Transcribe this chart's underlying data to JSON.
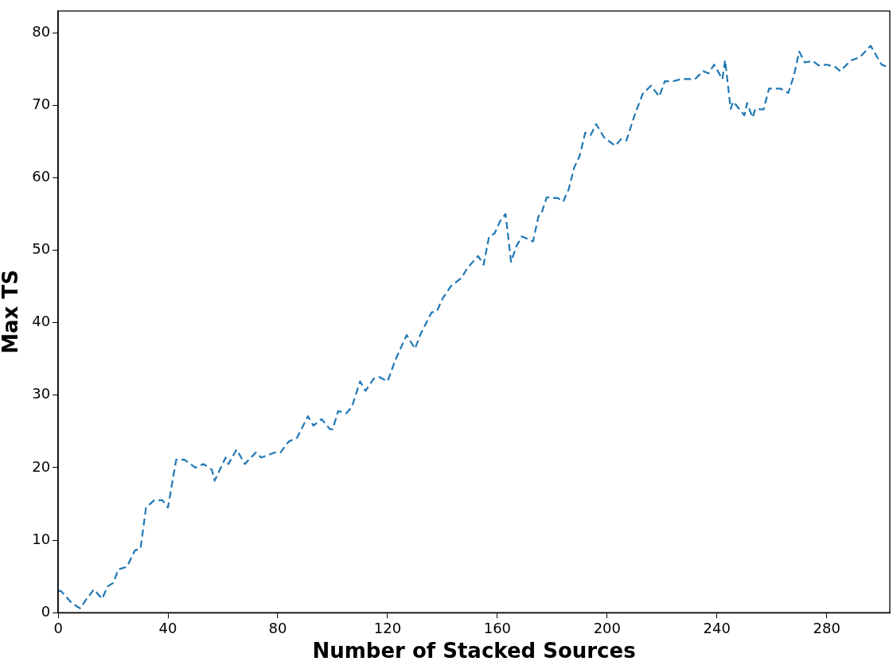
{
  "chart_data": {
    "type": "line",
    "xlabel": "Number of Stacked Sources",
    "ylabel": "Max TS",
    "xlim": [
      0,
      303
    ],
    "xticks": [
      0,
      40,
      80,
      120,
      160,
      200,
      240,
      280
    ],
    "ylim": [
      0,
      83
    ],
    "yticks": [
      0,
      10,
      20,
      30,
      40,
      50,
      60,
      70,
      80
    ],
    "grid": false,
    "legend": false,
    "marker": "none",
    "line_style": "dashed",
    "series": [
      {
        "color": "#1f77b4",
        "x": [
          0,
          1,
          5,
          8,
          10,
          13,
          16,
          18,
          20,
          22,
          25,
          28,
          30,
          32,
          35,
          38,
          40,
          43,
          46,
          50,
          53,
          56,
          57,
          61,
          62,
          65,
          68,
          72,
          74,
          79,
          81,
          84,
          87,
          91,
          93,
          96,
          99,
          100,
          102,
          105,
          107,
          110,
          112,
          115,
          117,
          120,
          123,
          127,
          130,
          132,
          136,
          138,
          140,
          143,
          147,
          149,
          153,
          155,
          157,
          159,
          161,
          163,
          165,
          167,
          169,
          173,
          175,
          176,
          178,
          180,
          182,
          184,
          186,
          188,
          190,
          192,
          194,
          196,
          199,
          203,
          205,
          207,
          210,
          213,
          216,
          219,
          221,
          224,
          227,
          232,
          235,
          237,
          239,
          242,
          243,
          245,
          246,
          250,
          251,
          253,
          254,
          257,
          259,
          263,
          266,
          268,
          270,
          272,
          275,
          277,
          280,
          283,
          285,
          287,
          289,
          292,
          296,
          300,
          302
        ],
        "values": [
          3,
          3,
          1.3,
          0.6,
          1.7,
          3.2,
          1.9,
          3.6,
          4.1,
          6,
          6.3,
          8.6,
          8.8,
          14.5,
          15.5,
          15.5,
          14.5,
          21.1,
          21.1,
          20,
          20.5,
          19.7,
          18.2,
          21.4,
          20.5,
          22.5,
          20.5,
          22.1,
          21.4,
          22.1,
          22.1,
          23.6,
          24.1,
          27.1,
          25.8,
          26.7,
          25.3,
          25.3,
          27.8,
          27.5,
          28.4,
          31.9,
          30.6,
          32.3,
          32.5,
          31.9,
          35,
          38.3,
          36.4,
          38.4,
          41.4,
          41.6,
          43.3,
          45,
          46.2,
          47.5,
          49.2,
          48,
          51.9,
          52.3,
          54,
          55,
          48.4,
          50.6,
          51.9,
          51.2,
          54.7,
          55,
          57.3,
          57.2,
          57.2,
          56.7,
          58.4,
          61.4,
          63,
          66.2,
          65.9,
          67.4,
          65.5,
          64.4,
          65.3,
          65.1,
          68.6,
          71.6,
          72.7,
          71.2,
          73.3,
          73.3,
          73.6,
          73.6,
          74.7,
          74.4,
          75.6,
          73.6,
          76.2,
          69.5,
          70.5,
          68.6,
          70.3,
          68.3,
          69.5,
          69.4,
          72.3,
          72.3,
          71.7,
          74,
          77.4,
          75.9,
          76.1,
          75.5,
          75.6,
          75.3,
          74.7,
          75.5,
          76.2,
          76.6,
          78.2,
          75.6,
          75.3
        ]
      }
    ]
  }
}
